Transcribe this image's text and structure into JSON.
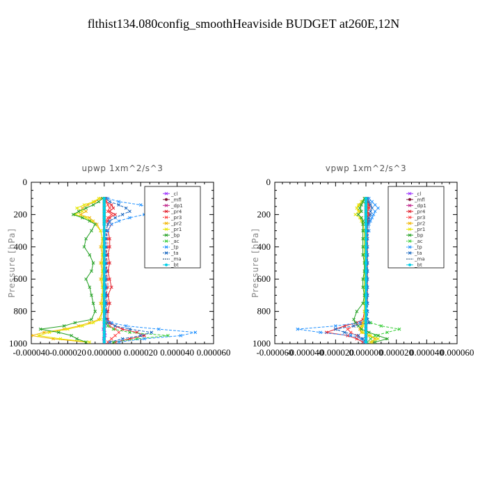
{
  "figure": {
    "title": "flthist134.080config_smoothHeaviside  BUDGET at260E,12N"
  },
  "chart_data": [
    {
      "type": "line",
      "title": "upwp   1xm^2/s^3",
      "xlabel": "",
      "ylabel": "Pressure [hPa]",
      "xlim": [
        -4e-05,
        6e-05
      ],
      "ylim": [
        1000,
        0
      ],
      "xticks": [
        "-0.000040",
        "-0.000020",
        "0.000000",
        "0.000020",
        "0.000040",
        "0.000060"
      ],
      "yticks": [
        "0",
        "200",
        "400",
        "600",
        "800",
        "1000"
      ],
      "legend_position": "top-right",
      "x_scale_note": "values in units of 1e-6",
      "pressure": [
        100,
        120,
        140,
        160,
        180,
        200,
        220,
        240,
        260,
        300,
        350,
        400,
        450,
        500,
        550,
        600,
        650,
        700,
        750,
        800,
        850,
        870,
        890,
        910,
        930,
        950,
        970,
        990
      ],
      "series": [
        {
          "name": "_cl",
          "color": "#9b30ff",
          "dash": "",
          "marker": "x",
          "values": [
            0,
            0,
            0,
            0,
            0,
            0,
            0,
            0,
            0,
            0,
            0,
            0,
            0,
            0,
            0,
            0,
            0,
            0,
            0,
            0,
            0,
            0.3,
            0.5,
            -0.5,
            0.3,
            0.5,
            -0.3,
            0
          ]
        },
        {
          "name": "_mfl",
          "color": "#7a1030",
          "dash": "",
          "marker": "circle",
          "values": [
            0,
            0,
            0,
            0,
            0,
            0,
            0,
            0,
            0,
            0,
            0,
            0,
            0,
            0,
            0,
            0,
            0,
            0,
            0,
            0,
            0,
            0,
            0,
            0,
            0,
            0,
            0,
            0
          ]
        },
        {
          "name": "_dp1",
          "color": "#c0208a",
          "dash": "",
          "marker": "x",
          "values": [
            0,
            0,
            0,
            0,
            0,
            0,
            0,
            0,
            0,
            0,
            0,
            0,
            0,
            0,
            0,
            0,
            0,
            0,
            0,
            0,
            0,
            0,
            0,
            0,
            0,
            0,
            0,
            0
          ]
        },
        {
          "name": "_pr4",
          "color": "#e11d2a",
          "dash": "",
          "marker": "x",
          "values": [
            0.5,
            1,
            4,
            5,
            3,
            6,
            3,
            2,
            4,
            2,
            3,
            3,
            2,
            3,
            2,
            3,
            4,
            2,
            3,
            2,
            2,
            3,
            6,
            10,
            18,
            22,
            14,
            6
          ]
        },
        {
          "name": "_pr3",
          "color": "#ff3b3b",
          "dash": "4,2",
          "marker": "x",
          "values": [
            0,
            1,
            2,
            3,
            2,
            4,
            2,
            1,
            2,
            1,
            2,
            2,
            1,
            2,
            1,
            2,
            2,
            1,
            2,
            1,
            1,
            2,
            3,
            6,
            8,
            6,
            4,
            2
          ]
        },
        {
          "name": "_pr2",
          "color": "#f2b400",
          "dash": "",
          "marker": "x",
          "values": [
            -2,
            -5,
            -9,
            -12,
            -10,
            -13,
            -8,
            -6,
            -4,
            -2,
            -1,
            -2,
            -1,
            -2,
            -1,
            -2,
            -1,
            -1,
            -2,
            -1,
            -3,
            -8,
            -14,
            -22,
            -33,
            -40,
            -28,
            -10
          ]
        },
        {
          "name": "_pr1",
          "color": "#e6e600",
          "dash": "",
          "marker": "x",
          "values": [
            -3,
            -6,
            -11,
            -15,
            -12,
            -16,
            -10,
            -7,
            -5,
            -2,
            -1,
            -1,
            -1,
            -1,
            -1,
            -1,
            -1,
            -1,
            -1,
            -1,
            -2,
            -6,
            -12,
            -20,
            -30,
            -36,
            -24,
            -8
          ]
        },
        {
          "name": "_bp",
          "color": "#22a022",
          "dash": "",
          "marker": "x",
          "values": [
            -1,
            -3,
            -6,
            -10,
            -14,
            -17,
            -12,
            -8,
            -5,
            -7,
            -10,
            -11,
            -8,
            -6,
            -7,
            -10,
            -8,
            -7,
            -6,
            -5,
            -7,
            -16,
            -22,
            -35,
            -25,
            -18,
            -15,
            -10
          ]
        },
        {
          "name": "_ac",
          "color": "#33cc33",
          "dash": "4,2",
          "marker": "x",
          "values": [
            0,
            0,
            0,
            0,
            0,
            0,
            0,
            0,
            0,
            0,
            0,
            0,
            0,
            0,
            0,
            0,
            0,
            0,
            0,
            0,
            0,
            1,
            2,
            5,
            14,
            35,
            18,
            5
          ]
        },
        {
          "name": "_tp",
          "color": "#1e90ff",
          "dash": "4,2",
          "marker": "x",
          "values": [
            2,
            8,
            20,
            26,
            30,
            22,
            14,
            8,
            4,
            2,
            1,
            1,
            1,
            1,
            1,
            1,
            1,
            1,
            1,
            1,
            1,
            4,
            12,
            30,
            50,
            42,
            22,
            8
          ]
        },
        {
          "name": "_ta",
          "color": "#1565c0",
          "dash": "4,2",
          "marker": "x",
          "values": [
            1,
            3,
            8,
            12,
            14,
            10,
            6,
            3,
            2,
            1,
            1,
            1,
            1,
            1,
            1,
            1,
            1,
            1,
            1,
            1,
            1,
            2,
            6,
            14,
            26,
            20,
            10,
            3
          ]
        },
        {
          "name": "_ma",
          "color": "#0d3b66",
          "dash": "6,2,1,2",
          "marker": "",
          "values": [
            0,
            0,
            0,
            0,
            0,
            0,
            0,
            0,
            0,
            0,
            0,
            0,
            0,
            0,
            0,
            0,
            0,
            0,
            0,
            0,
            0,
            0,
            0,
            0,
            0,
            0,
            0,
            0
          ]
        },
        {
          "name": "_bt",
          "color": "#00cfe8",
          "dash": "",
          "marker": "circle",
          "values": [
            0,
            0,
            0,
            0,
            0,
            0,
            0,
            0,
            0,
            0,
            0,
            0,
            0,
            0,
            0,
            0,
            0,
            0,
            0,
            0,
            0,
            0,
            0,
            0,
            0,
            0,
            0,
            0
          ]
        }
      ]
    },
    {
      "type": "line",
      "title": "vpwp   1xm^2/s^3",
      "xlabel": "",
      "ylabel": "Pressure [hPa]",
      "xlim": [
        -6e-05,
        6e-05
      ],
      "ylim": [
        1000,
        0
      ],
      "xticks": [
        "-0.000060",
        "-0.000040",
        "-0.000020",
        "0.000000",
        "0.000020",
        "0.000040",
        "0.000060"
      ],
      "yticks": [
        "0",
        "200",
        "400",
        "600",
        "800",
        "1000"
      ],
      "legend_position": "top-right",
      "x_scale_note": "values in units of 1e-6",
      "pressure": [
        100,
        120,
        140,
        160,
        180,
        200,
        220,
        240,
        260,
        300,
        350,
        400,
        450,
        500,
        550,
        600,
        650,
        700,
        750,
        800,
        850,
        870,
        890,
        910,
        930,
        950,
        970,
        990
      ],
      "series": [
        {
          "name": "_cl",
          "color": "#9b30ff",
          "dash": "",
          "marker": "x",
          "values": [
            0,
            0,
            0,
            0,
            0,
            0,
            0,
            0,
            0,
            0,
            0,
            0,
            0,
            0,
            0,
            0,
            0,
            0,
            0,
            0,
            0,
            0,
            0,
            0,
            0,
            0,
            0,
            0
          ]
        },
        {
          "name": "_mfl",
          "color": "#7a1030",
          "dash": "",
          "marker": "circle",
          "values": [
            0,
            0,
            0,
            0,
            0,
            0,
            0,
            0,
            0,
            0,
            0,
            0,
            0,
            0,
            0,
            0,
            0,
            0,
            0,
            0,
            0,
            0,
            0,
            0,
            0,
            0,
            0,
            0
          ]
        },
        {
          "name": "_dp1",
          "color": "#c0208a",
          "dash": "",
          "marker": "x",
          "values": [
            0,
            0,
            0,
            0,
            0,
            0,
            0,
            0,
            0,
            0,
            0,
            0,
            0,
            0,
            0,
            0,
            0,
            0,
            0,
            0,
            0,
            0,
            0,
            0,
            0,
            0,
            0,
            0
          ]
        },
        {
          "name": "_pr4",
          "color": "#e11d2a",
          "dash": "",
          "marker": "x",
          "values": [
            0,
            1,
            2,
            2,
            1,
            2,
            1,
            1,
            1,
            1,
            1,
            1,
            1,
            1,
            1,
            1,
            1,
            1,
            1,
            -1,
            -2,
            -6,
            -14,
            -20,
            -26,
            -12,
            -6,
            -2
          ]
        },
        {
          "name": "_pr3",
          "color": "#ff3b3b",
          "dash": "4,2",
          "marker": "x",
          "values": [
            0,
            0,
            1,
            1,
            1,
            1,
            1,
            0,
            0,
            0,
            0,
            0,
            0,
            0,
            0,
            0,
            0,
            0,
            0,
            0,
            -1,
            -3,
            -8,
            -12,
            -10,
            -6,
            -3,
            -1
          ]
        },
        {
          "name": "_pr2",
          "color": "#f2b400",
          "dash": "",
          "marker": "x",
          "values": [
            -1,
            -2,
            -4,
            -6,
            -4,
            -5,
            -3,
            -2,
            -2,
            -1,
            -1,
            -1,
            -1,
            -1,
            -1,
            -1,
            -1,
            -1,
            -1,
            -1,
            -1,
            -2,
            -3,
            -4,
            -3,
            2,
            6,
            3
          ]
        },
        {
          "name": "_pr1",
          "color": "#e6e600",
          "dash": "",
          "marker": "x",
          "values": [
            -1,
            -3,
            -5,
            -6,
            -5,
            -7,
            -4,
            -3,
            -2,
            -1,
            -1,
            -1,
            -1,
            -1,
            -1,
            -1,
            -1,
            -1,
            -1,
            -1,
            -1,
            -1,
            -2,
            -3,
            -2,
            3,
            8,
            4
          ]
        },
        {
          "name": "_bp",
          "color": "#22a022",
          "dash": "",
          "marker": "x",
          "values": [
            -1,
            -2,
            -3,
            -4,
            -3,
            -5,
            -3,
            -2,
            -2,
            -2,
            -2,
            -2,
            -2,
            -1,
            -1,
            -2,
            -2,
            -1,
            -2,
            -6,
            -8,
            -7,
            -5,
            -3,
            2,
            8,
            14,
            6
          ]
        },
        {
          "name": "_ac",
          "color": "#33cc33",
          "dash": "4,2",
          "marker": "x",
          "values": [
            0,
            0,
            0,
            0,
            0,
            0,
            0,
            0,
            0,
            0,
            0,
            0,
            0,
            0,
            0,
            0,
            0,
            0,
            0,
            0,
            1,
            3,
            10,
            22,
            14,
            6,
            3,
            1
          ]
        },
        {
          "name": "_tp",
          "color": "#1e90ff",
          "dash": "4,2",
          "marker": "x",
          "values": [
            2,
            4,
            6,
            8,
            6,
            5,
            4,
            3,
            2,
            2,
            1,
            1,
            1,
            1,
            1,
            1,
            1,
            1,
            1,
            1,
            1,
            -4,
            -20,
            -45,
            -30,
            -10,
            -3,
            -1
          ]
        },
        {
          "name": "_ta",
          "color": "#1565c0",
          "dash": "4,2",
          "marker": "x",
          "values": [
            1,
            2,
            3,
            4,
            3,
            3,
            2,
            2,
            1,
            1,
            1,
            1,
            1,
            1,
            1,
            1,
            1,
            1,
            1,
            1,
            1,
            2,
            -8,
            -20,
            -14,
            -5,
            -2,
            0
          ]
        },
        {
          "name": "_ma",
          "color": "#0d3b66",
          "dash": "6,2,1,2",
          "marker": "",
          "values": [
            0,
            0,
            0,
            0,
            0,
            0,
            0,
            0,
            0,
            0,
            0,
            0,
            0,
            0,
            0,
            0,
            0,
            0,
            0,
            0,
            0,
            0,
            0,
            0,
            0,
            0,
            0,
            0
          ]
        },
        {
          "name": "_bt",
          "color": "#00cfe8",
          "dash": "",
          "marker": "circle",
          "values": [
            0,
            0,
            0,
            0,
            0,
            0,
            0,
            0,
            0,
            0,
            0,
            0,
            0,
            0,
            0,
            0,
            0,
            0,
            0,
            0,
            0,
            0,
            0,
            0,
            0,
            0,
            0,
            0
          ]
        }
      ]
    }
  ]
}
